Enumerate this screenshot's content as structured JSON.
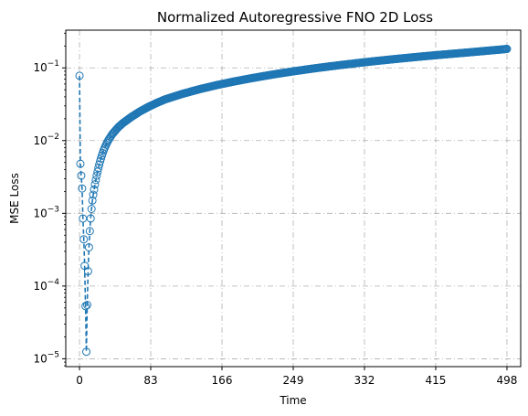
{
  "chart_data": {
    "type": "line",
    "title": "Normalized Autoregressive FNO 2D Loss",
    "xlabel": "Time",
    "ylabel": "MSE Loss",
    "y_scale": "log",
    "xlim": [
      -16,
      514
    ],
    "ylim": [
      7.8e-06,
      0.33
    ],
    "grid": true,
    "grid_style": "dash-dot",
    "x_ticks": [
      {
        "value": 0,
        "label": "0"
      },
      {
        "value": 83,
        "label": "83"
      },
      {
        "value": 166,
        "label": "166"
      },
      {
        "value": 249,
        "label": "249"
      },
      {
        "value": 332,
        "label": "332"
      },
      {
        "value": 415,
        "label": "415"
      },
      {
        "value": 498,
        "label": "498"
      }
    ],
    "y_ticks": [
      {
        "value": 1e-05,
        "base": "10",
        "exp": "−5"
      },
      {
        "value": 0.0001,
        "base": "10",
        "exp": "−4"
      },
      {
        "value": 0.001,
        "base": "10",
        "exp": "−3"
      },
      {
        "value": 0.01,
        "base": "10",
        "exp": "−2"
      },
      {
        "value": 0.1,
        "base": "10",
        "exp": "−1"
      }
    ],
    "series": [
      {
        "marker": "open-circle",
        "line_style": "dashed",
        "color": "#1f77b4",
        "x": [
          0,
          1,
          2,
          3,
          4,
          5,
          6,
          7,
          8,
          9,
          10,
          11,
          12,
          13,
          14,
          15,
          16,
          18,
          20,
          22,
          24,
          26,
          28,
          30,
          32,
          34,
          36,
          38,
          40,
          45,
          50,
          55,
          60,
          70,
          80,
          90,
          100,
          120,
          140,
          160,
          180,
          200,
          225,
          250,
          275,
          300,
          325,
          350,
          375,
          400,
          425,
          450,
          475,
          498
        ],
        "y": [
          0.078,
          0.0048,
          0.0033,
          0.0022,
          0.00085,
          0.00044,
          0.00019,
          5.3e-05,
          1.25e-05,
          5.5e-05,
          0.00016,
          0.00034,
          0.00057,
          0.00085,
          0.00115,
          0.0015,
          0.0018,
          0.0025,
          0.0033,
          0.0042,
          0.0052,
          0.0062,
          0.0073,
          0.0083,
          0.0093,
          0.0103,
          0.0112,
          0.0122,
          0.013,
          0.0152,
          0.0172,
          0.019,
          0.021,
          0.025,
          0.029,
          0.033,
          0.037,
          0.044,
          0.051,
          0.058,
          0.065,
          0.072,
          0.081,
          0.09,
          0.099,
          0.108,
          0.117,
          0.126,
          0.135,
          0.144,
          0.153,
          0.162,
          0.172,
          0.182
        ]
      }
    ]
  }
}
